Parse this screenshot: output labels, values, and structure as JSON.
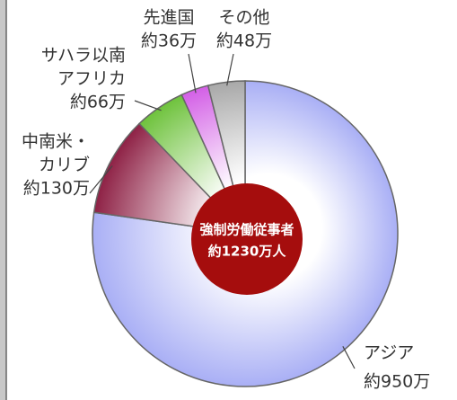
{
  "chart_data": {
    "type": "pie",
    "categories": [
      [
        "アジア"
      ],
      [
        "中南米・",
        "カリブ"
      ],
      [
        "サハラ以南",
        "アフリカ"
      ],
      [
        "先進国"
      ],
      [
        "その他"
      ]
    ],
    "values": [
      950,
      130,
      66,
      36,
      48
    ],
    "value_labels": [
      "約950万",
      "約130万",
      "約66万",
      "約36万",
      "約48万"
    ],
    "colors": [
      "#a9aff5",
      "#8e2145",
      "#6ec23c",
      "#d35fe6",
      "#a8a8a8"
    ],
    "center_label": [
      "強制労働従事者",
      "約1230万人"
    ],
    "center_color": "#a50d0d"
  }
}
